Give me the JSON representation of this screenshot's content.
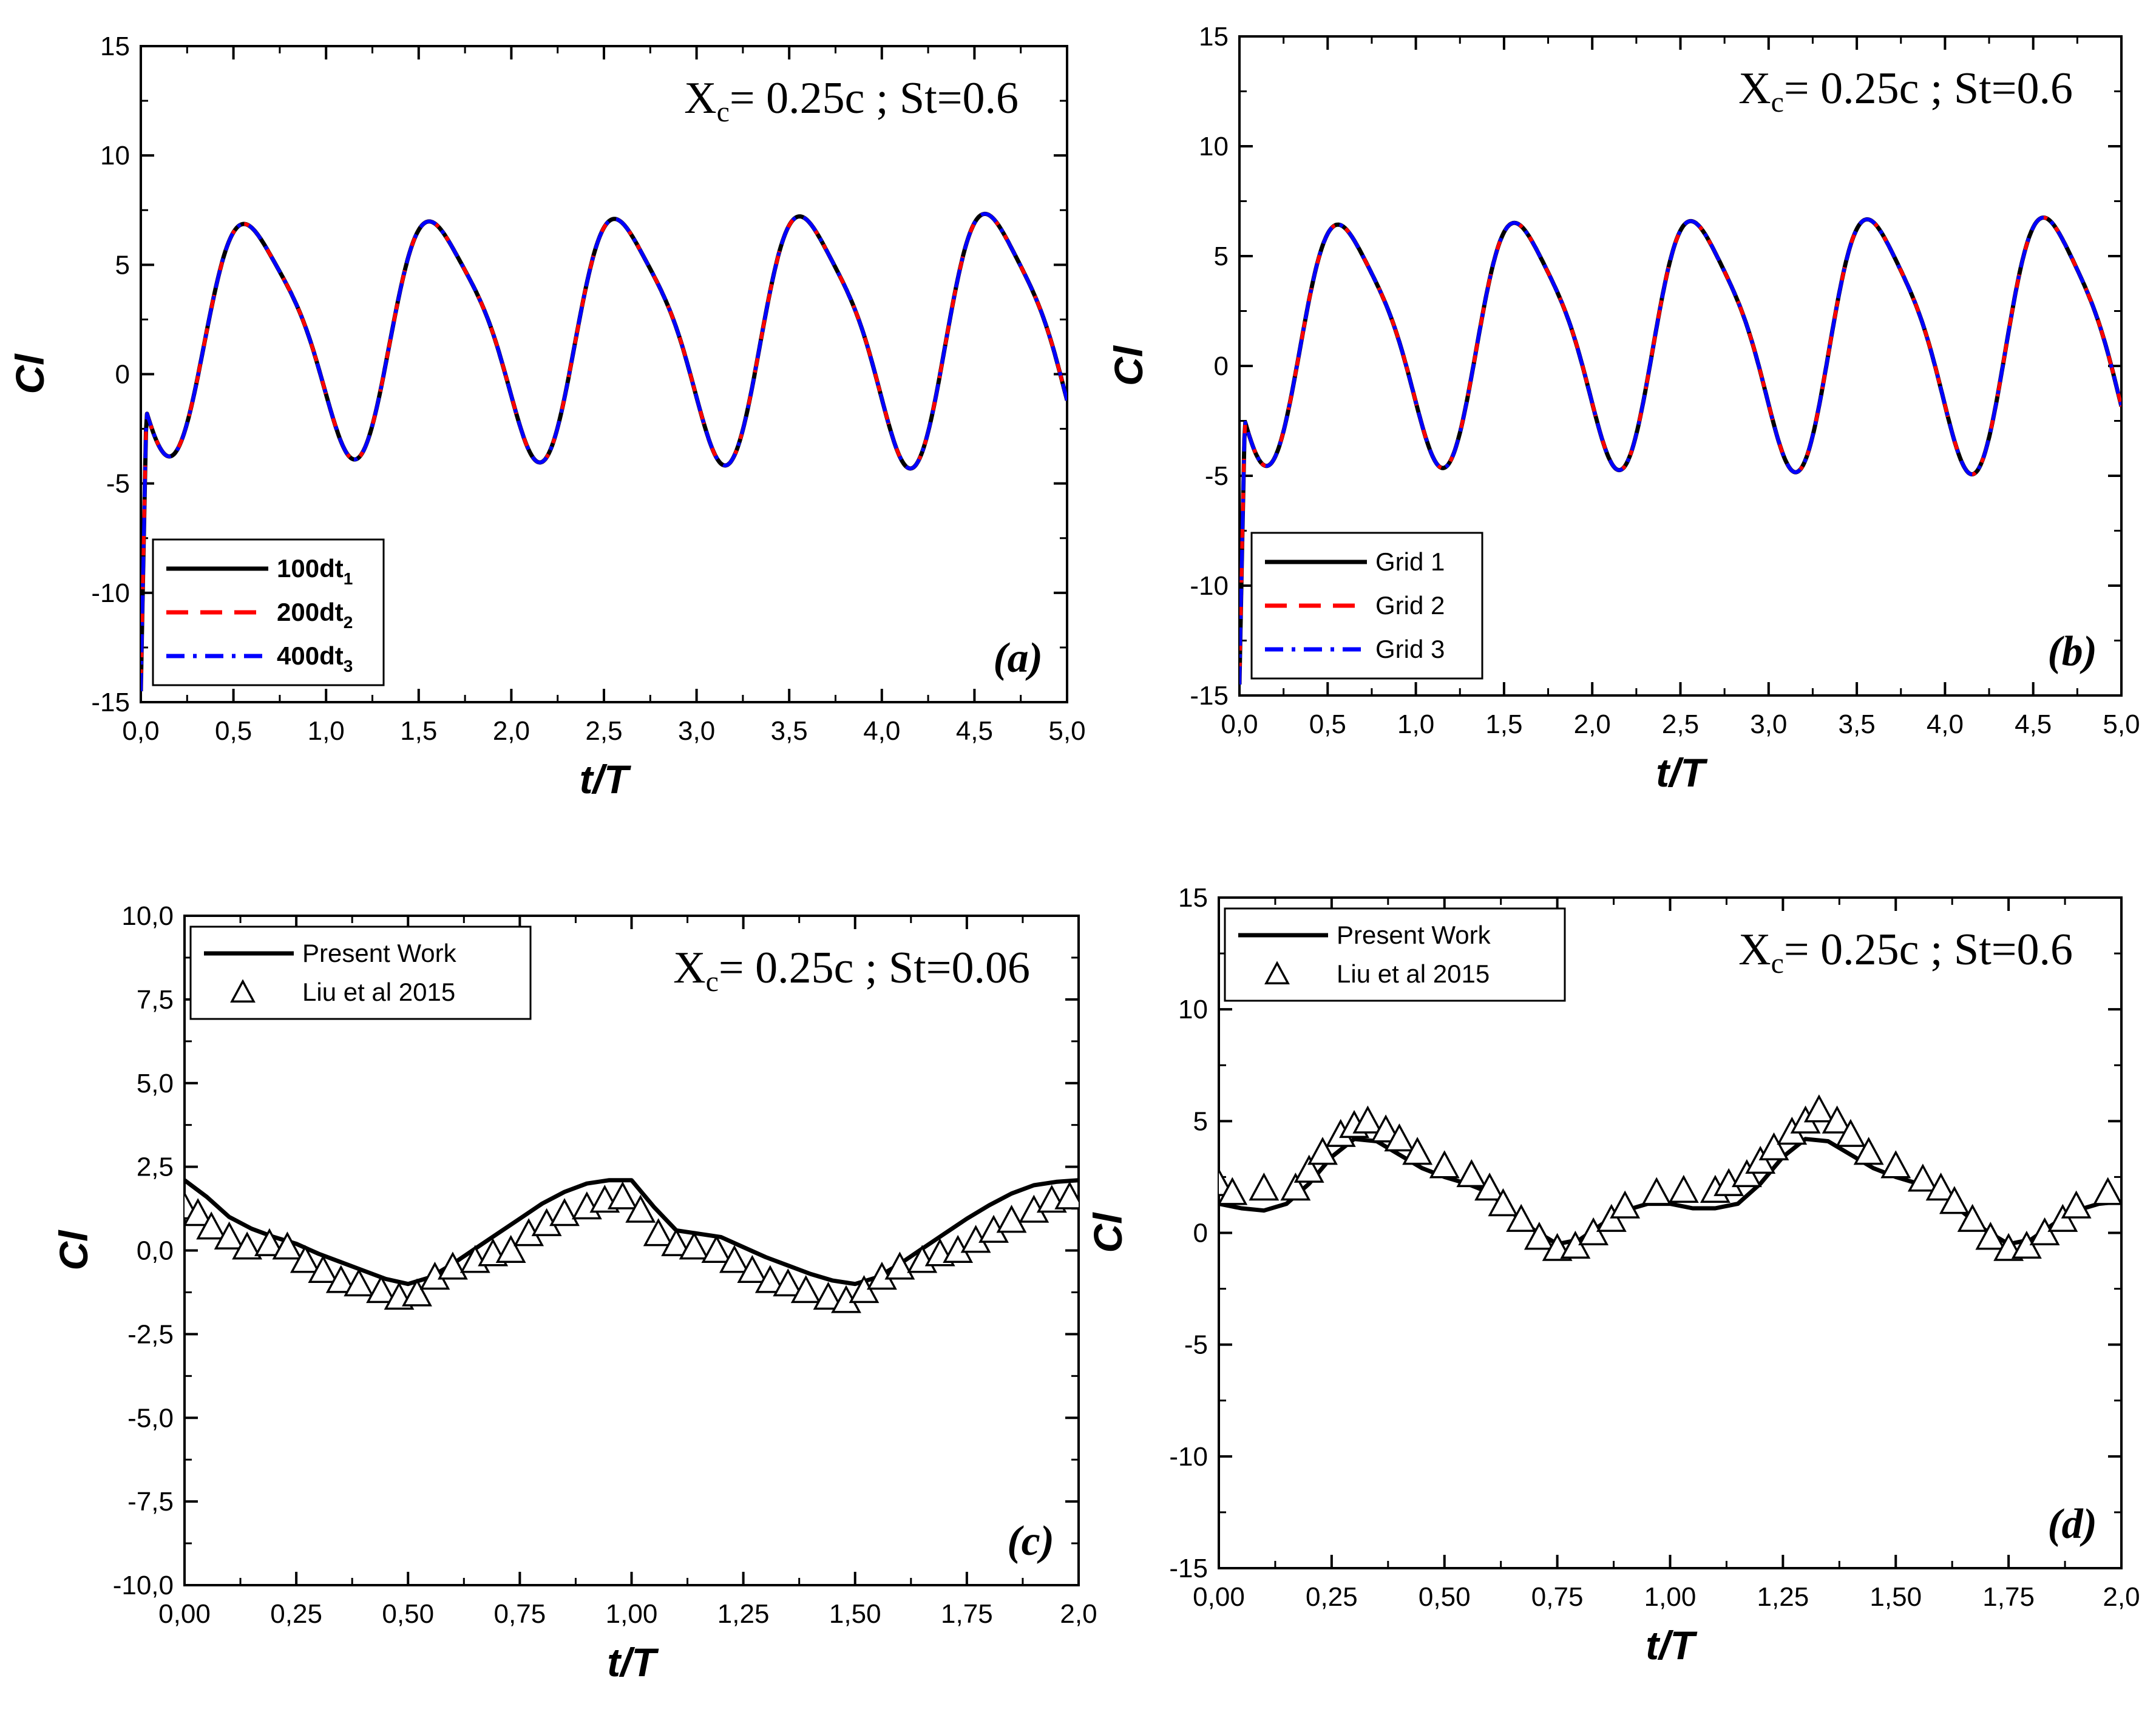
{
  "figure": {
    "description_label": "Lift coefficient Cl versus t/T"
  },
  "chart_data": [
    {
      "type": "line",
      "panel": "(a)",
      "annotation": {
        "prefix": "X",
        "sub": "c",
        "suffix": "= 0.25c ; St=0.6"
      },
      "xlabel": "t/T",
      "ylabel": "Cl",
      "xlim": [
        0,
        5
      ],
      "ylim": [
        -15,
        15
      ],
      "xticks": [
        0,
        0.5,
        1,
        1.5,
        2,
        2.5,
        3,
        3.5,
        4,
        4.5,
        5
      ],
      "xtick_labels": [
        "0,0",
        "0,5",
        "1,0",
        "1,5",
        "2,0",
        "2,5",
        "3,0",
        "3,5",
        "4,0",
        "4,5",
        "5,0"
      ],
      "yticks": [
        -15,
        -10,
        -5,
        0,
        5,
        10,
        15
      ],
      "ytick_labels": [
        "-15",
        "-10",
        "-5",
        "0",
        "5",
        "10",
        "15"
      ],
      "legend": {
        "position": "lower-left",
        "entries": [
          {
            "label": "100dt",
            "sub": "1",
            "color": "#000000",
            "dash": "solid"
          },
          {
            "label": "200dt",
            "sub": "2",
            "color": "#ff0000",
            "dash": "dashed"
          },
          {
            "label": "400dt",
            "sub": "3",
            "color": "#0000ff",
            "dash": "dashdot"
          }
        ]
      },
      "model": {
        "base": 2.0,
        "amp1": 5.0,
        "amp2": 1.0,
        "phase_peak": 0.62,
        "amp_growth": 0.12,
        "start_value": -14.5,
        "start_settle": 0.03
      },
      "series": [
        {
          "name": "100dt1",
          "color": "#000000",
          "dash": "solid",
          "width": 7
        },
        {
          "name": "200dt2",
          "color": "#ff0000",
          "dash": "dashed",
          "width": 6
        },
        {
          "name": "400dt3",
          "color": "#0000ff",
          "dash": "dashdot",
          "width": 6
        }
      ]
    },
    {
      "type": "line",
      "panel": "(b)",
      "annotation": {
        "prefix": "X",
        "sub": "c",
        "suffix": "= 0.25c ; St=0.6"
      },
      "xlabel": "t/T",
      "ylabel": "Cl",
      "xlim": [
        0,
        5
      ],
      "ylim": [
        -15,
        15
      ],
      "xticks": [
        0,
        0.5,
        1,
        1.5,
        2,
        2.5,
        3,
        3.5,
        4,
        4.5,
        5
      ],
      "xtick_labels": [
        "0,0",
        "0,5",
        "1,0",
        "1,5",
        "2,0",
        "2,5",
        "3,0",
        "3,5",
        "4,0",
        "4,5",
        "5,0"
      ],
      "yticks": [
        -15,
        -10,
        -5,
        0,
        5,
        10,
        15
      ],
      "ytick_labels": [
        "-15",
        "-10",
        "-5",
        "0",
        "5",
        "10",
        "15"
      ],
      "legend": {
        "position": "lower-left",
        "entries": [
          {
            "label": "Grid 1",
            "color": "#000000",
            "dash": "solid"
          },
          {
            "label": "Grid 2",
            "color": "#ff0000",
            "dash": "dashed"
          },
          {
            "label": "Grid 3",
            "color": "#0000ff",
            "dash": "dashdot"
          }
        ]
      },
      "model": {
        "base": 1.4,
        "amp1": 5.2,
        "amp2": 1.0,
        "phase_peak": 0.62,
        "amp_growth": 0.08,
        "start_value": -14.5,
        "start_settle": 0.03
      },
      "series": [
        {
          "name": "Grid 1",
          "color": "#000000",
          "dash": "solid",
          "width": 7
        },
        {
          "name": "Grid 2",
          "color": "#ff0000",
          "dash": "dashed",
          "width": 6
        },
        {
          "name": "Grid 3",
          "color": "#0000ff",
          "dash": "dashdot",
          "width": 6
        }
      ]
    },
    {
      "type": "line",
      "panel": "(c)",
      "annotation": {
        "prefix": "X",
        "sub": "c",
        "suffix": "= 0.25c ; St=0.06"
      },
      "xlabel": "t/T",
      "ylabel": "Cl",
      "xlim": [
        0,
        2
      ],
      "ylim": [
        -10,
        10
      ],
      "xticks": [
        0,
        0.25,
        0.5,
        0.75,
        1,
        1.25,
        1.5,
        1.75,
        2
      ],
      "xtick_labels": [
        "0,00",
        "0,25",
        "0,50",
        "0,75",
        "1,00",
        "1,25",
        "1,50",
        "1,75",
        "2,0"
      ],
      "yticks": [
        -10,
        -7.5,
        -5,
        -2.5,
        0,
        2.5,
        5,
        7.5,
        10
      ],
      "ytick_labels": [
        "-10,0",
        "-7,5",
        "-5,0",
        "-2,5",
        "0,0",
        "2,5",
        "5,0",
        "7,5",
        "10,0"
      ],
      "legend": {
        "position": "top-left",
        "entries": [
          {
            "label": "Present Work",
            "color": "#000000",
            "marker": "line"
          },
          {
            "label": "Liu et al 2015",
            "color": "#000000",
            "marker": "triangle"
          }
        ]
      },
      "line_x": [
        0.0,
        0.05,
        0.1,
        0.15,
        0.2,
        0.25,
        0.3,
        0.35,
        0.4,
        0.45,
        0.5,
        0.55,
        0.6,
        0.65,
        0.7,
        0.75,
        0.8,
        0.85,
        0.9,
        0.95,
        1.0,
        1.05,
        1.1,
        1.15,
        1.2,
        1.25,
        1.3,
        1.35,
        1.4,
        1.45,
        1.5,
        1.55,
        1.6,
        1.65,
        1.7,
        1.75,
        1.8,
        1.85,
        1.9,
        1.95,
        2.0
      ],
      "line_y": [
        2.1,
        1.6,
        1.0,
        0.65,
        0.4,
        0.2,
        -0.1,
        -0.35,
        -0.6,
        -0.85,
        -1.0,
        -0.8,
        -0.4,
        0.05,
        0.5,
        0.95,
        1.4,
        1.75,
        2.0,
        2.1,
        2.1,
        1.3,
        0.6,
        0.5,
        0.4,
        0.1,
        -0.2,
        -0.45,
        -0.7,
        -0.9,
        -1.0,
        -0.8,
        -0.4,
        0.05,
        0.5,
        0.95,
        1.35,
        1.7,
        1.95,
        2.05,
        2.1
      ],
      "markers_x": [
        0.0,
        0.03,
        0.06,
        0.1,
        0.14,
        0.19,
        0.23,
        0.27,
        0.31,
        0.35,
        0.39,
        0.44,
        0.48,
        0.52,
        0.56,
        0.6,
        0.65,
        0.69,
        0.73,
        0.77,
        0.81,
        0.85,
        0.9,
        0.94,
        0.98,
        1.02,
        1.06,
        1.1,
        1.14,
        1.19,
        1.23,
        1.27,
        1.31,
        1.35,
        1.39,
        1.44,
        1.48,
        1.52,
        1.56,
        1.6,
        1.65,
        1.69,
        1.73,
        1.77,
        1.81,
        1.85,
        1.9,
        1.94,
        1.98
      ],
      "markers_y": [
        1.3,
        1.1,
        0.7,
        0.4,
        0.1,
        0.2,
        0.1,
        -0.3,
        -0.6,
        -0.9,
        -1.0,
        -1.2,
        -1.4,
        -1.3,
        -0.8,
        -0.5,
        -0.3,
        -0.1,
        0.0,
        0.5,
        0.8,
        1.1,
        1.3,
        1.5,
        1.6,
        1.2,
        0.5,
        0.2,
        0.1,
        0.0,
        -0.3,
        -0.6,
        -0.9,
        -1.0,
        -1.2,
        -1.4,
        -1.5,
        -1.2,
        -0.8,
        -0.5,
        -0.3,
        -0.1,
        0.0,
        0.3,
        0.6,
        0.9,
        1.2,
        1.5,
        1.6
      ]
    },
    {
      "type": "line",
      "panel": "(d)",
      "annotation": {
        "prefix": "X",
        "sub": "c",
        "suffix": "= 0.25c ; St=0.6"
      },
      "xlabel": "t/T",
      "ylabel": "Cl",
      "xlim": [
        0,
        2
      ],
      "ylim": [
        -15,
        15
      ],
      "xticks": [
        0,
        0.25,
        0.5,
        0.75,
        1,
        1.25,
        1.5,
        1.75,
        2
      ],
      "xtick_labels": [
        "0,00",
        "0,25",
        "0,50",
        "0,75",
        "1,00",
        "1,25",
        "1,50",
        "1,75",
        "2,0"
      ],
      "yticks": [
        -15,
        -10,
        -5,
        0,
        5,
        10,
        15
      ],
      "ytick_labels": [
        "-15",
        "-10",
        "-5",
        "0",
        "5",
        "10",
        "15"
      ],
      "legend": {
        "position": "top-left",
        "entries": [
          {
            "label": "Present Work",
            "color": "#000000",
            "marker": "line"
          },
          {
            "label": "Liu et al 2015",
            "color": "#000000",
            "marker": "triangle"
          }
        ]
      },
      "line_x": [
        0.0,
        0.05,
        0.1,
        0.15,
        0.2,
        0.25,
        0.3,
        0.35,
        0.4,
        0.45,
        0.5,
        0.55,
        0.6,
        0.65,
        0.7,
        0.75,
        0.8,
        0.85,
        0.9,
        0.95,
        1.0,
        1.05,
        1.1,
        1.15,
        1.2,
        1.25,
        1.3,
        1.35,
        1.4,
        1.45,
        1.5,
        1.55,
        1.6,
        1.65,
        1.7,
        1.75,
        1.8,
        1.85,
        1.9,
        1.95,
        2.0
      ],
      "line_y": [
        1.3,
        1.1,
        1.0,
        1.3,
        2.2,
        3.4,
        4.2,
        4.1,
        3.5,
        2.9,
        2.5,
        2.2,
        1.8,
        0.9,
        0.1,
        -0.5,
        -0.3,
        0.4,
        1.0,
        1.3,
        1.3,
        1.1,
        1.1,
        1.3,
        2.2,
        3.4,
        4.2,
        4.1,
        3.5,
        2.9,
        2.5,
        2.2,
        1.8,
        0.9,
        0.1,
        -0.5,
        -0.3,
        0.4,
        1.0,
        1.3,
        1.4
      ],
      "markers_x": [
        0.0,
        0.03,
        0.1,
        0.17,
        0.2,
        0.23,
        0.27,
        0.3,
        0.33,
        0.37,
        0.4,
        0.44,
        0.5,
        0.56,
        0.6,
        0.63,
        0.67,
        0.71,
        0.75,
        0.79,
        0.83,
        0.87,
        0.9,
        0.97,
        1.03,
        1.1,
        1.13,
        1.17,
        1.2,
        1.23,
        1.27,
        1.3,
        1.33,
        1.37,
        1.4,
        1.44,
        1.5,
        1.56,
        1.6,
        1.63,
        1.67,
        1.71,
        1.75,
        1.79,
        1.83,
        1.87,
        1.9,
        1.97
      ],
      "markers_y": [
        2.2,
        1.8,
        2.0,
        2.0,
        2.8,
        3.6,
        4.4,
        4.8,
        5.0,
        4.6,
        4.2,
        3.6,
        3.0,
        2.6,
        2.0,
        1.3,
        0.6,
        -0.2,
        -0.7,
        -0.6,
        0.0,
        0.6,
        1.2,
        1.8,
        1.9,
        1.9,
        2.2,
        2.6,
        3.2,
        3.8,
        4.5,
        5.0,
        5.5,
        5.0,
        4.4,
        3.6,
        3.0,
        2.4,
        2.0,
        1.4,
        0.6,
        -0.2,
        -0.7,
        -0.6,
        0.0,
        0.6,
        1.2,
        1.8
      ]
    }
  ]
}
